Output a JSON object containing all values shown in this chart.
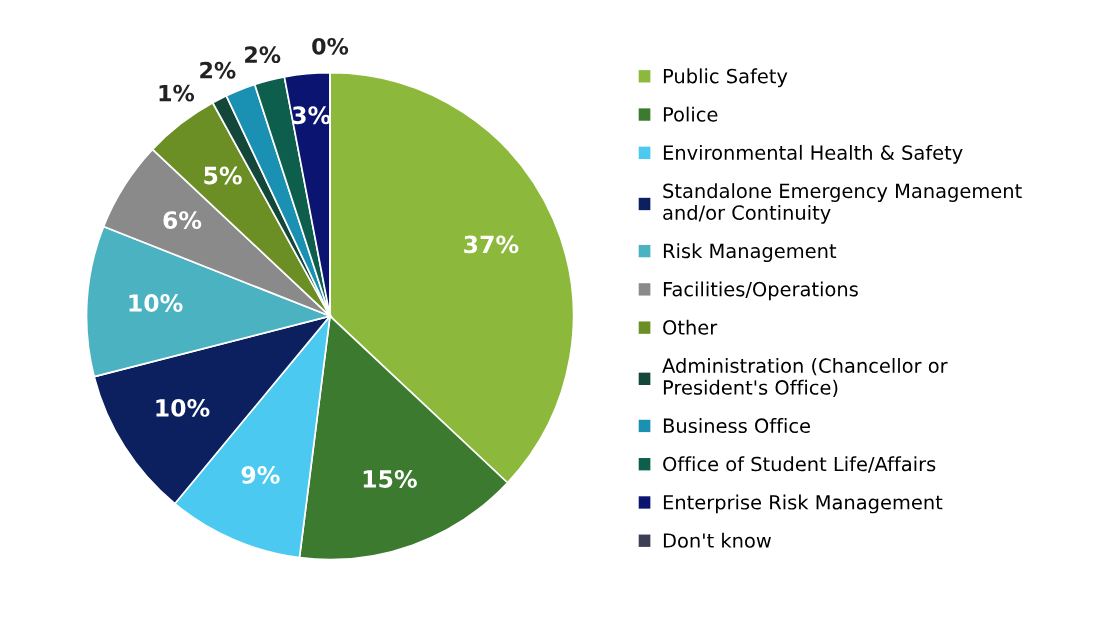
{
  "chart_data": {
    "type": "pie",
    "categories": [
      "Public Safety",
      "Police",
      "Environmental Health & Safety",
      "Standalone Emergency Management\nand/or Continuity",
      "Risk Management",
      "Facilities/Operations",
      "Other",
      "Administration (Chancellor or\nPresident's Office)",
      "Business Office",
      "Office of Student Life/Affairs",
      "Enterprise Risk Management",
      "Don't know"
    ],
    "values": [
      37,
      15,
      9,
      10,
      10,
      6,
      5,
      1,
      2,
      2,
      3,
      0
    ],
    "value_labels": [
      "37%",
      "15%",
      "9%",
      "10%",
      "10%",
      "6%",
      "5%",
      "1%",
      "2%",
      "2%",
      "3%",
      "0%"
    ],
    "colors": [
      "#8cb83c",
      "#3b7a2f",
      "#4cc9f0",
      "#0c1f5e",
      "#4ab2c0",
      "#8a8a8a",
      "#6b8f24",
      "#12473a",
      "#1a90b3",
      "#0d5e4c",
      "#0b1470",
      "#3d3d55"
    ],
    "legend": "right"
  }
}
